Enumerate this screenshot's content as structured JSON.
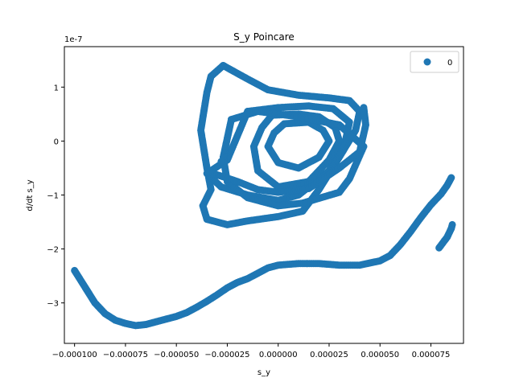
{
  "chart_data": {
    "type": "scatter",
    "title": "S_y Poincare",
    "xlabel": "s_y",
    "ylabel": "d/dt s_y",
    "y_offset_text": "1e-7",
    "y_scale": 1e-07,
    "xlim": [
      -0.000105,
      9.1e-05
    ],
    "ylim": [
      -3.75,
      1.75
    ],
    "x_ticks": [
      -0.0001,
      -7.5e-05,
      -5e-05,
      -2.5e-05,
      0.0,
      2.5e-05,
      5e-05,
      7.5e-05
    ],
    "x_tick_labels": [
      "−0.000100",
      "−0.000075",
      "−0.000050",
      "−0.000025",
      "0.000000",
      "0.000025",
      "0.000050",
      "0.000075"
    ],
    "y_ticks": [
      -3,
      -2,
      -1,
      0,
      1
    ],
    "y_tick_labels": [
      "−3",
      "−2",
      "−1",
      "0",
      "1"
    ],
    "grid": false,
    "legend": {
      "position": "top-right",
      "entries": [
        "0"
      ]
    },
    "series": [
      {
        "name": "0",
        "color": "#1f77b4",
        "segments": [
          {
            "closed": false,
            "points": [
              [
                -0.0001,
                -2.4
              ],
              [
                -9.5e-05,
                -2.7
              ],
              [
                -9e-05,
                -3.0
              ],
              [
                -8.5e-05,
                -3.2
              ],
              [
                -8e-05,
                -3.32
              ],
              [
                -7.5e-05,
                -3.38
              ],
              [
                -7e-05,
                -3.42
              ],
              [
                -6.5e-05,
                -3.4
              ],
              [
                -6e-05,
                -3.35
              ],
              [
                -5.5e-05,
                -3.3
              ],
              [
                -5e-05,
                -3.25
              ],
              [
                -4.5e-05,
                -3.18
              ],
              [
                -4e-05,
                -3.08
              ],
              [
                -3.5e-05,
                -2.97
              ],
              [
                -3e-05,
                -2.85
              ],
              [
                -2.5e-05,
                -2.72
              ],
              [
                -2e-05,
                -2.62
              ],
              [
                -1.5e-05,
                -2.55
              ],
              [
                -1e-05,
                -2.45
              ],
              [
                -5e-06,
                -2.35
              ],
              [
                0.0,
                -2.3
              ],
              [
                1e-05,
                -2.27
              ],
              [
                2e-05,
                -2.27
              ],
              [
                3e-05,
                -2.3
              ],
              [
                4e-05,
                -2.3
              ],
              [
                5e-05,
                -2.22
              ],
              [
                5.5e-05,
                -2.12
              ],
              [
                6e-05,
                -1.92
              ],
              [
                6.5e-05,
                -1.68
              ],
              [
                7e-05,
                -1.42
              ],
              [
                7.5e-05,
                -1.18
              ],
              [
                8e-05,
                -0.98
              ],
              [
                8.3e-05,
                -0.82
              ],
              [
                8.5e-05,
                -0.68
              ]
            ]
          },
          {
            "closed": false,
            "points": [
              [
                7.9e-05,
                -1.98
              ],
              [
                8.1e-05,
                -1.88
              ],
              [
                8.3e-05,
                -1.78
              ],
              [
                8.5e-05,
                -1.62
              ],
              [
                8.55e-05,
                -1.55
              ]
            ]
          },
          {
            "closed": true,
            "points": [
              [
                -2.7e-05,
                1.4
              ],
              [
                -1.5e-05,
                1.15
              ],
              [
                -5e-06,
                0.95
              ],
              [
                1e-05,
                0.85
              ],
              [
                2.5e-05,
                0.8
              ],
              [
                3.5e-05,
                0.75
              ],
              [
                4e-05,
                0.55
              ],
              [
                3.8e-05,
                0.2
              ],
              [
                3e-05,
                -0.3
              ],
              [
                2e-05,
                -0.9
              ],
              [
                1.2e-05,
                -1.3
              ],
              [
                0.0,
                -1.4
              ],
              [
                -1.5e-05,
                -1.48
              ],
              [
                -2.5e-05,
                -1.55
              ],
              [
                -3.5e-05,
                -1.45
              ],
              [
                -3.7e-05,
                -1.2
              ],
              [
                -3.3e-05,
                -0.9
              ],
              [
                -3.5e-05,
                -0.5
              ],
              [
                -3.8e-05,
                0.2
              ],
              [
                -3.5e-05,
                0.9
              ],
              [
                -3.3e-05,
                1.2
              ]
            ]
          },
          {
            "closed": true,
            "points": [
              [
                -1.5e-05,
                0.55
              ],
              [
                0.0,
                0.62
              ],
              [
                1.5e-05,
                0.65
              ],
              [
                2.7e-05,
                0.6
              ],
              [
                3.5e-05,
                0.35
              ],
              [
                3.3e-05,
                0.0
              ],
              [
                2.5e-05,
                -0.55
              ],
              [
                1e-05,
                -1.0
              ],
              [
                0.0,
                -1.1
              ],
              [
                -1.5e-05,
                -1.0
              ],
              [
                -2.8e-05,
                -0.85
              ],
              [
                -3.5e-05,
                -0.6
              ],
              [
                -2.5e-05,
                -0.35
              ],
              [
                -2e-05,
                0.1
              ]
            ]
          },
          {
            "closed": true,
            "points": [
              [
                -3e-06,
                0.48
              ],
              [
                1e-05,
                0.5
              ],
              [
                2e-05,
                0.45
              ],
              [
                2.8e-05,
                0.25
              ],
              [
                3e-05,
                0.0
              ],
              [
                2.5e-05,
                -0.35
              ],
              [
                1.5e-05,
                -0.75
              ],
              [
                0.0,
                -0.85
              ],
              [
                -1e-05,
                -0.55
              ],
              [
                -1.2e-05,
                -0.1
              ],
              [
                -8e-06,
                0.25
              ]
            ]
          },
          {
            "closed": true,
            "points": [
              [
                3e-06,
                0.32
              ],
              [
                1.5e-05,
                0.35
              ],
              [
                2.2e-05,
                0.2
              ],
              [
                2.5e-05,
                0.0
              ],
              [
                2e-05,
                -0.3
              ],
              [
                1e-05,
                -0.5
              ],
              [
                0.0,
                -0.4
              ],
              [
                -5e-06,
                -0.1
              ],
              [
                -2e-06,
                0.15
              ]
            ]
          },
          {
            "closed": true,
            "points": [
              [
                -2.3e-05,
                0.4
              ],
              [
                -1e-05,
                0.55
              ],
              [
                1e-05,
                0.45
              ],
              [
                3e-05,
                0.3
              ],
              [
                4.2e-05,
                -0.1
              ],
              [
                3.5e-05,
                -0.7
              ],
              [
                3e-05,
                -0.95
              ],
              [
                1.2e-05,
                -1.15
              ],
              [
                0.0,
                -1.2
              ],
              [
                -1.5e-05,
                -1.05
              ],
              [
                -2.5e-05,
                -0.75
              ],
              [
                -2.7e-05,
                -0.3
              ]
            ]
          },
          {
            "closed": false,
            "points": [
              [
                -3.2e-05,
                -0.6
              ],
              [
                -2e-05,
                -0.75
              ],
              [
                -1e-05,
                -0.9
              ],
              [
                0.0,
                -0.95
              ],
              [
                1.5e-05,
                -0.88
              ],
              [
                3e-05,
                -0.5
              ],
              [
                4e-05,
                -0.2
              ],
              [
                4.3e-05,
                0.3
              ],
              [
                4.2e-05,
                0.62
              ]
            ]
          },
          {
            "closed": false,
            "points": [
              [
                -2.8e-05,
                -0.38
              ]
            ]
          }
        ]
      }
    ]
  }
}
